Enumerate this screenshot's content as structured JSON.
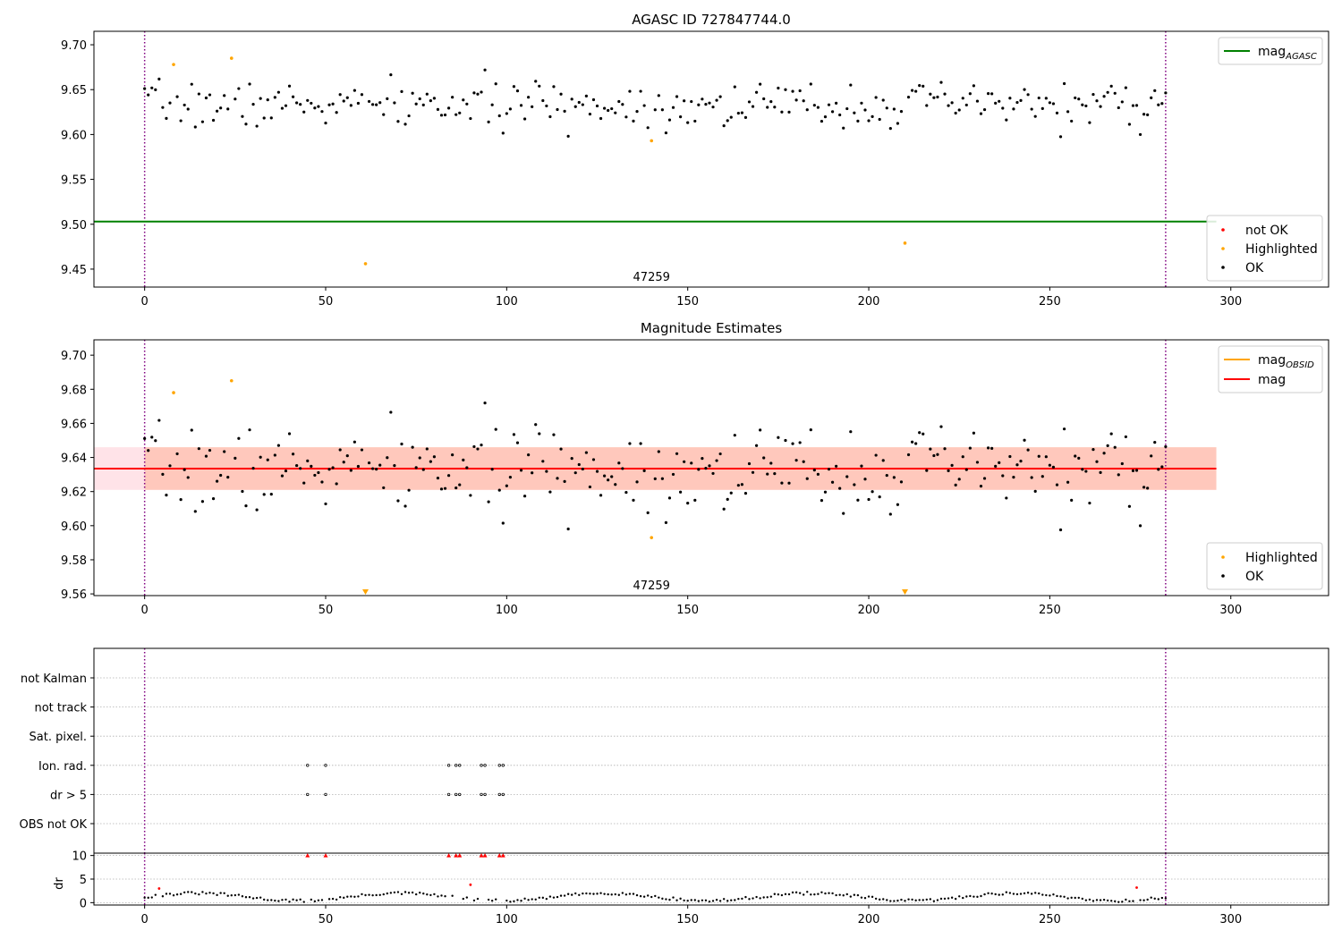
{
  "figure": {
    "panels": [
      {
        "title": "AGASC ID 727847744.0"
      },
      {
        "title": "Magnitude Estimates"
      },
      {
        "title": ""
      }
    ]
  },
  "chart_data": [
    {
      "type": "scatter",
      "title": "AGASC ID 727847744.0",
      "xlabel": "",
      "ylabel": "",
      "xlim": [
        -14,
        327
      ],
      "ylim": [
        9.43,
        9.715
      ],
      "xticks": [
        0,
        50,
        100,
        150,
        200,
        250,
        300
      ],
      "yticks": [
        9.45,
        9.5,
        9.55,
        9.6,
        9.65,
        9.7
      ],
      "ytick_labels": [
        "9.45",
        "9.50",
        "9.55",
        "9.60",
        "9.65",
        "9.70"
      ],
      "vlines": [
        {
          "x": 0,
          "color": "#800080",
          "style": "dotted"
        },
        {
          "x": 282,
          "color": "#800080",
          "style": "dotted"
        }
      ],
      "hlines": [
        {
          "name": "mag_AGASC",
          "y": 9.503,
          "x_range": [
            -14,
            296
          ],
          "color": "#008000"
        }
      ],
      "annotation": {
        "text": "47259",
        "x": 140,
        "y": 9.437
      },
      "legend_lines": [
        {
          "label": "mag",
          "subscript": "AGASC",
          "color": "#008000"
        }
      ],
      "legend_points": [
        {
          "label": "not OK",
          "color": "#ff0000"
        },
        {
          "label": "Highlighted",
          "color": "#ffa500"
        },
        {
          "label": "OK",
          "color": "#000000"
        }
      ],
      "highlighted": [
        [
          8,
          9.678
        ],
        [
          24,
          9.685
        ],
        [
          61,
          9.456
        ],
        [
          140,
          9.593
        ],
        [
          210,
          9.479
        ]
      ],
      "ok_seed": 7,
      "ok_n": 282,
      "ok_center": 9.633,
      "ok_spread": 0.0125
    },
    {
      "type": "scatter",
      "title": "Magnitude Estimates",
      "xlabel": "",
      "ylabel": "",
      "xlim": [
        -14,
        327
      ],
      "ylim": [
        9.559,
        9.709
      ],
      "xticks": [
        0,
        50,
        100,
        150,
        200,
        250,
        300
      ],
      "yticks": [
        9.56,
        9.58,
        9.6,
        9.62,
        9.64,
        9.66,
        9.68,
        9.7
      ],
      "ytick_labels": [
        "9.56",
        "9.58",
        "9.60",
        "9.62",
        "9.64",
        "9.66",
        "9.68",
        "9.70"
      ],
      "vlines": [
        {
          "x": 0,
          "color": "#800080",
          "style": "dotted"
        },
        {
          "x": 282,
          "color": "#800080",
          "style": "dotted"
        }
      ],
      "bands": [
        {
          "y0": 9.621,
          "y1": 9.646,
          "x0": -14,
          "x1": 296,
          "color": "#ffc0cb",
          "opacity": 0.45
        },
        {
          "y0": 9.621,
          "y1": 9.646,
          "x0": 0,
          "x1": 296,
          "color": "#ffa07a",
          "opacity": 0.4
        }
      ],
      "hlines": [
        {
          "name": "mag_OBSID",
          "y": 9.6335,
          "x_range": [
            0,
            282
          ],
          "color": "#ffa500"
        },
        {
          "name": "mag",
          "y": 9.6335,
          "x_range": [
            -14,
            296
          ],
          "color": "#ff0000"
        }
      ],
      "annotation": {
        "text": "47259",
        "x": 140,
        "y": 9.5615
      },
      "legend_lines": [
        {
          "label": "mag",
          "subscript": "OBSID",
          "color": "#ffa500"
        },
        {
          "label": "mag",
          "subscript": "",
          "color": "#ff0000"
        }
      ],
      "legend_points": [
        {
          "label": "Highlighted",
          "color": "#ffa500"
        },
        {
          "label": "OK",
          "color": "#000000"
        }
      ],
      "highlighted": [
        [
          8,
          9.678
        ],
        [
          24,
          9.685
        ],
        [
          140,
          9.593
        ]
      ],
      "out_of_range_markers": [
        [
          61,
          "down"
        ],
        [
          210,
          "down"
        ]
      ],
      "ok_seed": 7,
      "ok_n": 282,
      "ok_center": 9.633,
      "ok_spread": 0.0125
    },
    {
      "type": "scatter",
      "title": "",
      "xlabel": "",
      "ylabel": "",
      "xlim": [
        -14,
        327
      ],
      "xticks": [
        0,
        50,
        100,
        150,
        200,
        250,
        300
      ],
      "category_rows": [
        "not Kalman",
        "not track",
        "Sat. pixel.",
        "Ion. rad.",
        "dr > 5",
        "OBS not OK"
      ],
      "flag_points": {
        "Ion. rad.": [
          45,
          50,
          84,
          86,
          87,
          93,
          94,
          98,
          99
        ],
        "dr > 5": [
          45,
          50,
          84,
          86,
          87,
          93,
          94,
          98,
          99
        ]
      },
      "vlines": [
        {
          "x": 0,
          "color": "#800080",
          "style": "dotted"
        },
        {
          "x": 282,
          "color": "#800080",
          "style": "dotted"
        }
      ]
    },
    {
      "type": "scatter",
      "title": "",
      "xlabel": "",
      "ylabel": "dr",
      "xlim": [
        -14,
        327
      ],
      "ylim": [
        -0.5,
        10.5
      ],
      "xticks": [
        0,
        50,
        100,
        150,
        200,
        250,
        300
      ],
      "yticks": [
        0,
        5,
        10
      ],
      "ytick_labels": [
        "0",
        "5",
        "10"
      ],
      "red_capped_x": [
        45,
        50,
        84,
        86,
        87,
        93,
        94,
        98,
        99
      ],
      "red_points": [
        [
          4,
          3.0
        ],
        [
          90,
          3.8
        ],
        [
          274,
          3.2
        ]
      ],
      "vlines": [
        {
          "x": 0,
          "color": "#800080",
          "style": "dotted"
        },
        {
          "x": 282,
          "color": "#800080",
          "style": "dotted"
        }
      ]
    }
  ]
}
